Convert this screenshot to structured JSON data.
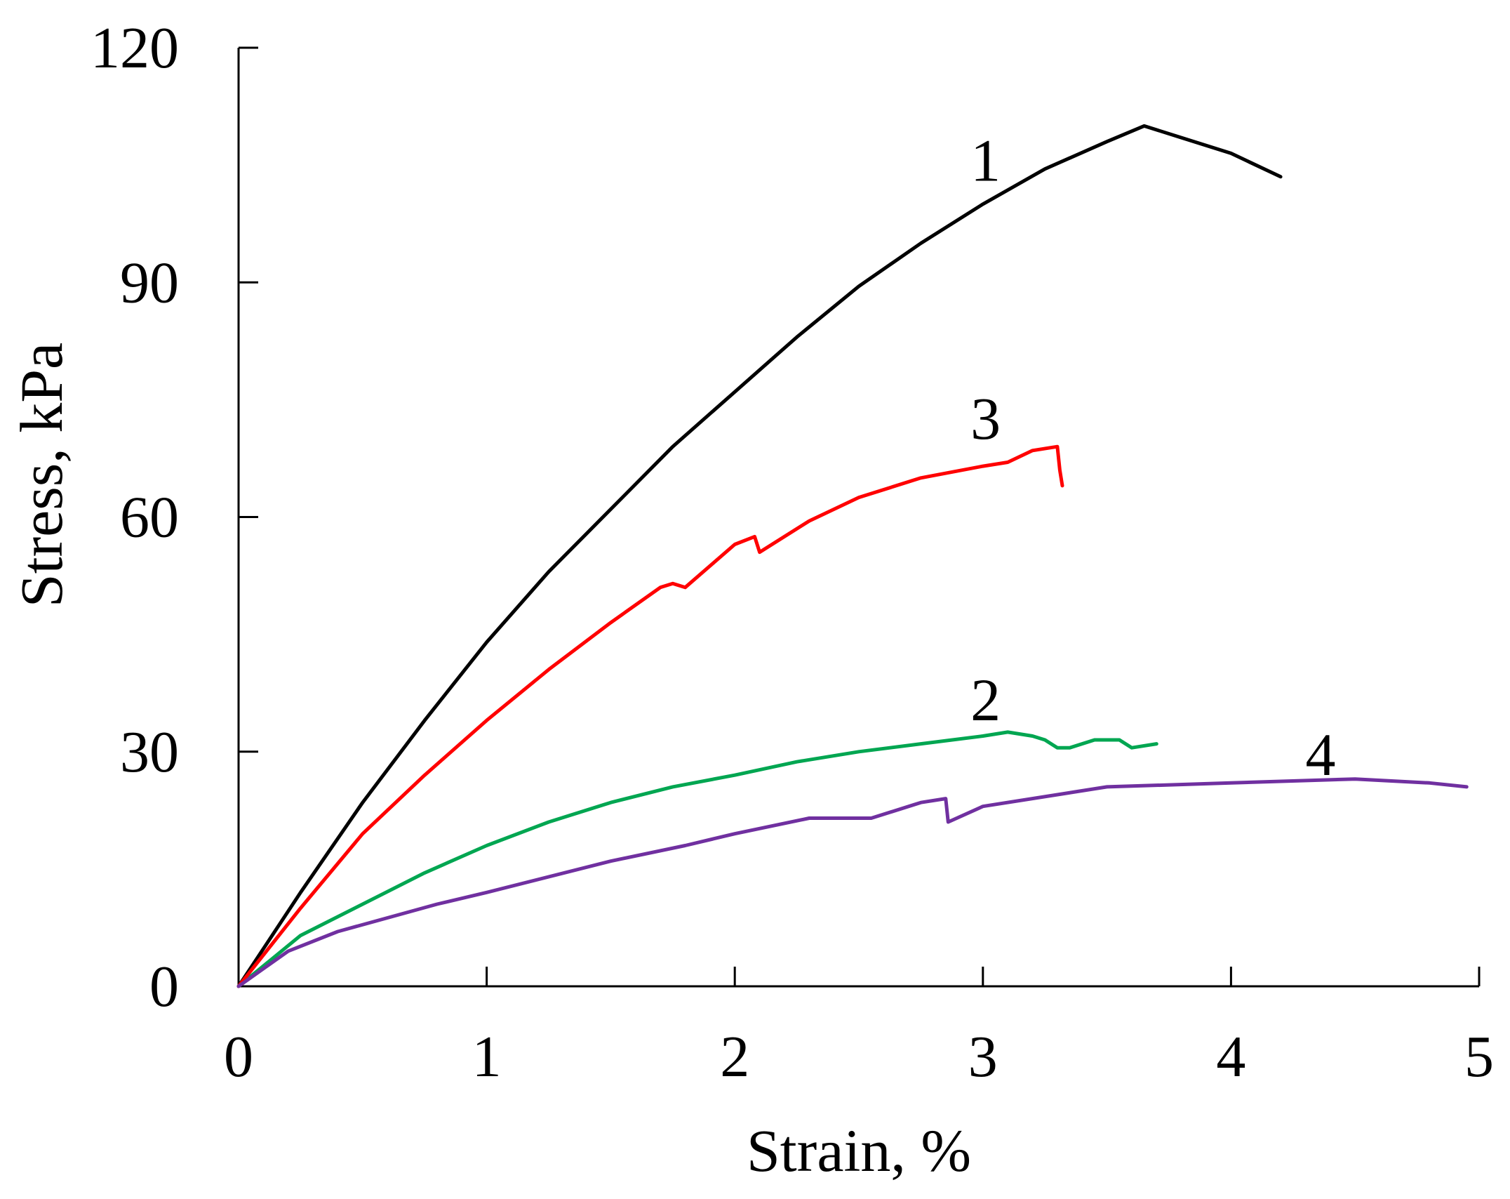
{
  "chart_data": {
    "type": "line",
    "title": "",
    "xlabel": "Strain, %",
    "ylabel": "Stress, kPa",
    "xlim": [
      0,
      5
    ],
    "ylim": [
      0,
      120
    ],
    "x_ticks": [
      "0",
      "1",
      "2",
      "3",
      "4",
      "5"
    ],
    "y_ticks": [
      "0",
      "30",
      "60",
      "90",
      "120"
    ],
    "grid": false,
    "legend": "none",
    "series": [
      {
        "name": "1",
        "color": "#000000",
        "x": [
          0,
          0.25,
          0.5,
          0.75,
          1.0,
          1.25,
          1.5,
          1.75,
          2.0,
          2.25,
          2.5,
          2.75,
          3.0,
          3.25,
          3.5,
          3.65,
          3.8,
          4.0,
          4.2
        ],
        "y": [
          0,
          12,
          23.5,
          34,
          44,
          53,
          61,
          69,
          76,
          83,
          89.5,
          95,
          100,
          104.5,
          108,
          110,
          108.5,
          106.5,
          103.5
        ],
        "label_at": [
          2.95,
          103
        ]
      },
      {
        "name": "2",
        "color": "#00a651",
        "x": [
          0,
          0.25,
          0.5,
          0.75,
          1.0,
          1.25,
          1.5,
          1.75,
          2.0,
          2.25,
          2.5,
          2.75,
          3.0,
          3.1,
          3.2,
          3.25,
          3.3,
          3.35,
          3.45,
          3.55,
          3.6,
          3.7
        ],
        "y": [
          0,
          6.5,
          10.5,
          14.5,
          18,
          21,
          23.5,
          25.5,
          27,
          28.7,
          30,
          31,
          32,
          32.5,
          32,
          31.5,
          30.5,
          30.5,
          31.5,
          31.5,
          30.5,
          31
        ],
        "label_at": [
          2.95,
          34
        ]
      },
      {
        "name": "3",
        "color": "#ff0000",
        "x": [
          0,
          0.25,
          0.5,
          0.75,
          1.0,
          1.25,
          1.5,
          1.7,
          1.75,
          1.8,
          2.0,
          2.08,
          2.1,
          2.3,
          2.5,
          2.75,
          3.0,
          3.1,
          3.2,
          3.3,
          3.31,
          3.32
        ],
        "y": [
          0,
          10,
          19.5,
          27,
          34,
          40.5,
          46.5,
          51,
          51.5,
          51,
          56.5,
          57.5,
          55.5,
          59.5,
          62.5,
          65,
          66.5,
          67,
          68.5,
          69,
          66,
          64
        ],
        "label_at": [
          2.95,
          70
        ]
      },
      {
        "name": "4",
        "color": "#7030a0",
        "x": [
          0,
          0.2,
          0.4,
          0.8,
          1.0,
          1.5,
          1.8,
          2.0,
          2.3,
          2.5,
          2.55,
          2.75,
          2.85,
          2.86,
          3.0,
          3.5,
          4.0,
          4.5,
          4.8,
          4.95
        ],
        "y": [
          0,
          4.5,
          7,
          10.5,
          12,
          16,
          18,
          19.5,
          21.5,
          21.5,
          21.5,
          23.5,
          24,
          21,
          23,
          25.5,
          26,
          26.5,
          26,
          25.5
        ],
        "label_at": [
          4.3,
          27
        ]
      }
    ]
  }
}
